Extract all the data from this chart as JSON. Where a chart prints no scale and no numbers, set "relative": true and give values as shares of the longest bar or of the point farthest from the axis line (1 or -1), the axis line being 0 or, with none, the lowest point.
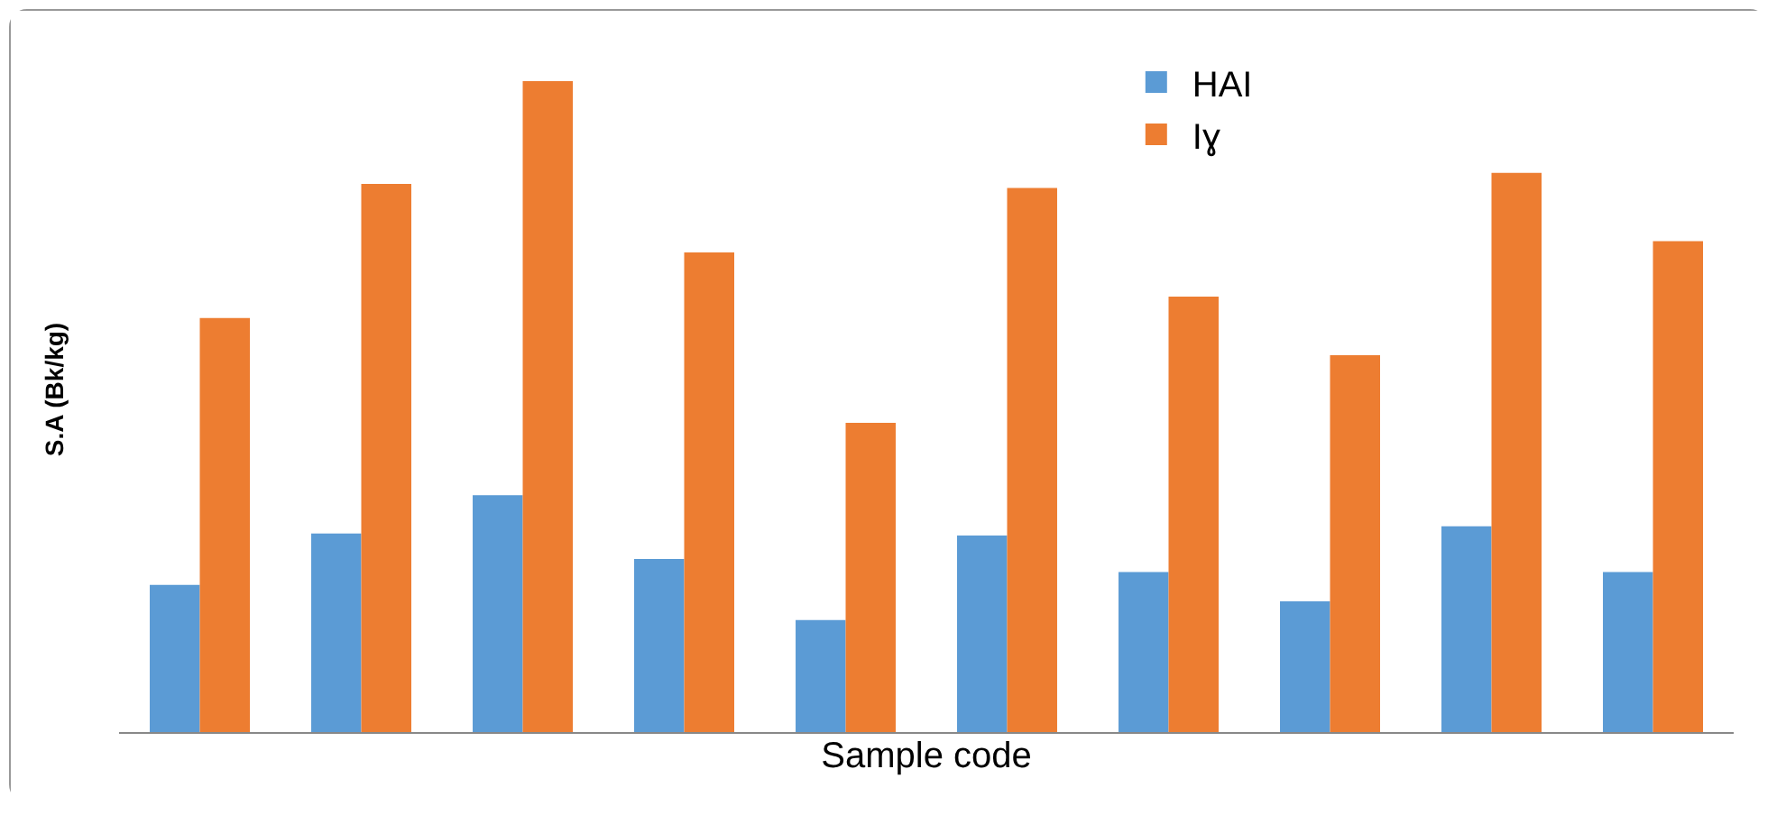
{
  "chart_data": {
    "type": "bar",
    "relative": true,
    "ylabel": "S.A (Bk/kg)",
    "xlabel": "Sample code",
    "categories": [
      null,
      null,
      null,
      null,
      null,
      null,
      null,
      null,
      null,
      null
    ],
    "series": [
      {
        "name": "HAI",
        "color": "#5b9bd5",
        "values": [
          0.226,
          0.305,
          0.364,
          0.266,
          0.172,
          0.302,
          0.246,
          0.201,
          0.316,
          0.246
        ]
      },
      {
        "name": "Iɣ",
        "color": "#ed7d31",
        "values": [
          0.636,
          0.842,
          1,
          0.737,
          0.475,
          0.836,
          0.669,
          0.579,
          0.859,
          0.754
        ]
      }
    ],
    "legend": "top right",
    "grid": false,
    "tick_labels": false
  }
}
